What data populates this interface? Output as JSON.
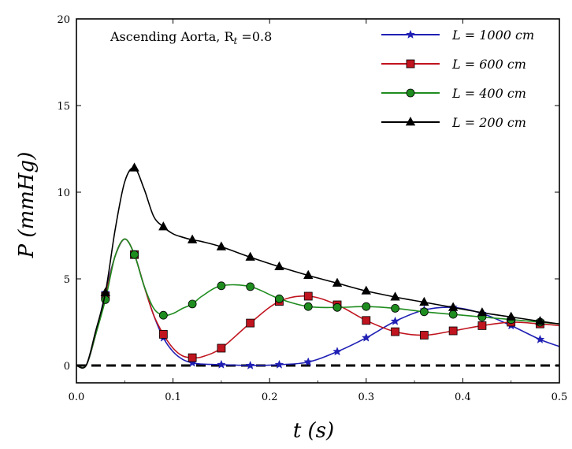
{
  "chart_data": {
    "type": "line",
    "annotation": "Ascending Aorta, R",
    "annotation_sub": "t",
    "annotation_tail": " =0.8",
    "xlabel": "t (s)",
    "ylabel": "P (mmHg)",
    "xlim": [
      0.0,
      0.5
    ],
    "ylim": [
      -1,
      20
    ],
    "xticks": [
      "0.0",
      "0.1",
      "0.2",
      "0.3",
      "0.4",
      "0.5"
    ],
    "xtick_values": [
      0.0,
      0.1,
      0.2,
      0.3,
      0.4,
      0.5
    ],
    "yticks": [
      "0",
      "5",
      "10",
      "15",
      "20"
    ],
    "ytick_values": [
      0,
      5,
      10,
      15,
      20
    ],
    "grid": false,
    "legend_position": "top-right",
    "reference_line": {
      "y": 0,
      "style": "dashed",
      "color": "#000000"
    },
    "series": [
      {
        "name": "L = 1000 cm",
        "color": "#1f1fb4",
        "marker": "star",
        "x": [
          0.0,
          0.01,
          0.02,
          0.03,
          0.04,
          0.05,
          0.06,
          0.07,
          0.08,
          0.09,
          0.1,
          0.11,
          0.12,
          0.13,
          0.15,
          0.18,
          0.21,
          0.24,
          0.27,
          0.3,
          0.33,
          0.36,
          0.39,
          0.42,
          0.45,
          0.48,
          0.5
        ],
        "y": [
          0.0,
          0.0,
          1.8,
          4.2,
          6.3,
          7.3,
          6.4,
          4.6,
          2.9,
          1.6,
          0.8,
          0.35,
          0.15,
          0.08,
          0.05,
          0.0,
          0.05,
          0.2,
          0.8,
          1.6,
          2.55,
          3.2,
          3.35,
          3.0,
          2.3,
          1.5,
          1.1
        ],
        "marker_x": [
          0.03,
          0.06,
          0.09,
          0.12,
          0.15,
          0.18,
          0.21,
          0.24,
          0.27,
          0.3,
          0.33,
          0.36,
          0.39,
          0.42,
          0.45,
          0.48
        ]
      },
      {
        "name": "L = 600 cm",
        "color": "#c0141e",
        "marker": "square",
        "x": [
          0.0,
          0.01,
          0.02,
          0.03,
          0.04,
          0.05,
          0.06,
          0.07,
          0.08,
          0.09,
          0.1,
          0.11,
          0.12,
          0.13,
          0.15,
          0.18,
          0.21,
          0.24,
          0.27,
          0.3,
          0.33,
          0.36,
          0.39,
          0.42,
          0.45,
          0.48,
          0.5
        ],
        "y": [
          0.0,
          0.0,
          1.8,
          4.0,
          6.3,
          7.3,
          6.4,
          4.6,
          2.9,
          1.8,
          1.0,
          0.55,
          0.45,
          0.5,
          1.0,
          2.45,
          3.7,
          4.0,
          3.5,
          2.6,
          1.95,
          1.75,
          2.0,
          2.3,
          2.5,
          2.4,
          2.3
        ],
        "marker_x": [
          0.03,
          0.06,
          0.09,
          0.12,
          0.15,
          0.18,
          0.21,
          0.24,
          0.27,
          0.3,
          0.33,
          0.36,
          0.39,
          0.42,
          0.45,
          0.48
        ]
      },
      {
        "name": "L = 400 cm",
        "color": "#1e8c1e",
        "marker": "circle",
        "x": [
          0.0,
          0.01,
          0.02,
          0.03,
          0.04,
          0.05,
          0.06,
          0.07,
          0.08,
          0.09,
          0.1,
          0.11,
          0.12,
          0.13,
          0.15,
          0.18,
          0.21,
          0.24,
          0.27,
          0.3,
          0.33,
          0.36,
          0.39,
          0.42,
          0.45,
          0.48,
          0.5
        ],
        "y": [
          0.0,
          0.0,
          1.8,
          3.8,
          6.3,
          7.3,
          6.4,
          4.6,
          3.3,
          2.9,
          3.0,
          3.3,
          3.55,
          4.0,
          4.6,
          4.55,
          3.85,
          3.4,
          3.35,
          3.4,
          3.3,
          3.1,
          2.95,
          2.8,
          2.65,
          2.5,
          2.4
        ],
        "marker_x": [
          0.03,
          0.06,
          0.09,
          0.12,
          0.15,
          0.18,
          0.21,
          0.24,
          0.27,
          0.3,
          0.33,
          0.36,
          0.39,
          0.42,
          0.45,
          0.48
        ]
      },
      {
        "name": "L = 200 cm",
        "color": "#000000",
        "marker": "triangle",
        "x": [
          0.0,
          0.01,
          0.02,
          0.03,
          0.04,
          0.05,
          0.06,
          0.07,
          0.08,
          0.09,
          0.1,
          0.11,
          0.12,
          0.13,
          0.15,
          0.18,
          0.21,
          0.24,
          0.27,
          0.3,
          0.33,
          0.36,
          0.39,
          0.42,
          0.45,
          0.48,
          0.5
        ],
        "y": [
          0.0,
          0.0,
          2.0,
          4.2,
          7.8,
          10.6,
          11.4,
          10.2,
          8.6,
          8.0,
          7.6,
          7.4,
          7.25,
          7.15,
          6.85,
          6.25,
          5.7,
          5.2,
          4.75,
          4.3,
          3.95,
          3.65,
          3.35,
          3.05,
          2.8,
          2.55,
          2.4
        ],
        "marker_x": [
          0.03,
          0.06,
          0.09,
          0.12,
          0.15,
          0.18,
          0.21,
          0.24,
          0.27,
          0.3,
          0.33,
          0.36,
          0.39,
          0.42,
          0.45,
          0.48
        ]
      }
    ]
  }
}
